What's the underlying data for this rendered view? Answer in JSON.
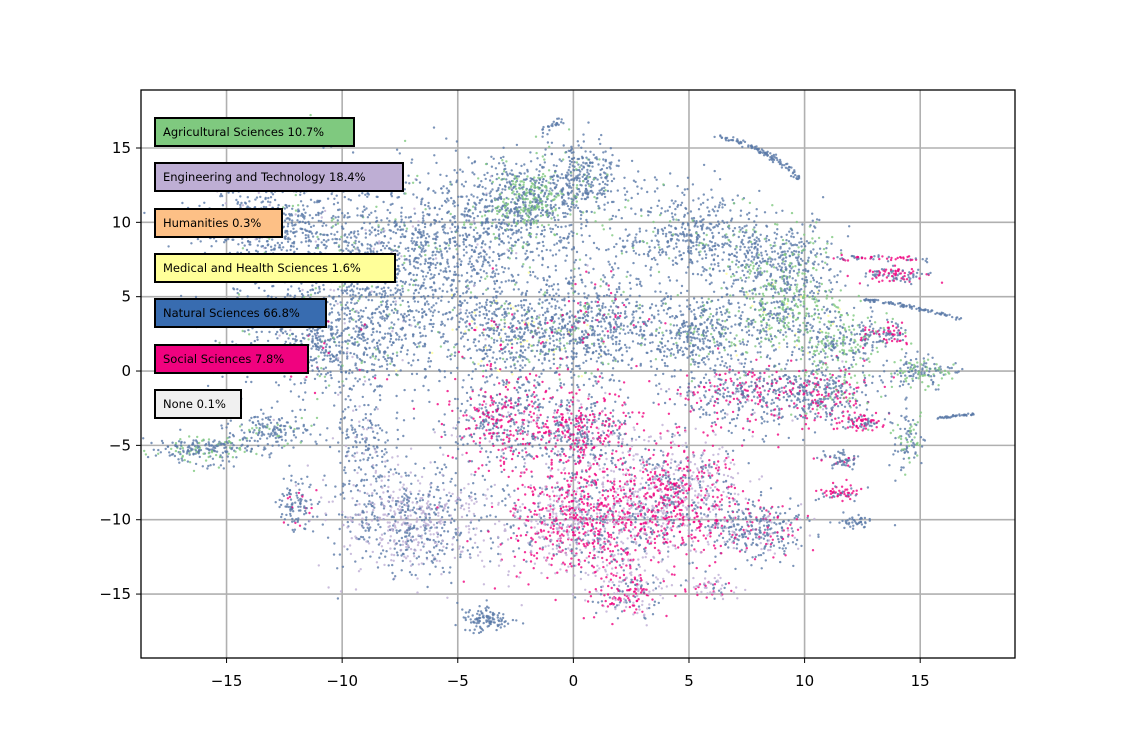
{
  "chart_data": {
    "type": "scatter",
    "title": "",
    "xlabel": "",
    "ylabel": "",
    "xlim": [
      -18.7,
      19.1
    ],
    "ylim": [
      -19.3,
      18.9
    ],
    "grid": true,
    "legend_placement": "upper-left",
    "x_ticks": [
      -15,
      -10,
      -5,
      0,
      5,
      10,
      15
    ],
    "y_ticks": [
      -15,
      -10,
      -5,
      0,
      5,
      10,
      15
    ],
    "x_tick_labels": [
      "−15",
      "−10",
      "−5",
      "0",
      "5",
      "10",
      "15"
    ],
    "y_tick_labels": [
      "−15",
      "−10",
      "−5",
      "0",
      "5",
      "10",
      "15"
    ],
    "series": [
      {
        "name": "Agricultural Sciences",
        "percent_label": "10.7%",
        "label": "Agricultural Sciences 10.7%",
        "color": "#7fc97f"
      },
      {
        "name": "Engineering and Technology",
        "percent_label": "18.4%",
        "label": "Engineering and Technology 18.4%",
        "color": "#beaed4"
      },
      {
        "name": "Humanities",
        "percent_label": "0.3%",
        "label": "Humanities 0.3%",
        "color": "#fdc086"
      },
      {
        "name": "Medical and Health Sciences",
        "percent_label": "1.6%",
        "label": "Medical and Health Sciences 1.6%",
        "color": "#ffff99"
      },
      {
        "name": "Natural Sciences",
        "percent_label": "66.8%",
        "label": "Natural Sciences 66.8%",
        "color": "#386cb0"
      },
      {
        "name": "Social Sciences",
        "percent_label": "7.8%",
        "label": "Social Sciences 7.8%",
        "color": "#f0027f"
      },
      {
        "name": "None",
        "percent_label": "0.1%",
        "label": "None 0.1%",
        "color": "#f0f0f0"
      }
    ],
    "point_color": "#5a79a8",
    "clusters": [
      {
        "cx": -8.5,
        "cy": 7.0,
        "rx": 6.5,
        "ry": 6.5,
        "n": 1500,
        "mix": {
          "4": 0.9,
          "0": 0.07,
          "1": 0.03
        }
      },
      {
        "cx": -13.5,
        "cy": 10.0,
        "rx": 3.5,
        "ry": 3.0,
        "n": 400,
        "mix": {
          "4": 0.93,
          "0": 0.05,
          "1": 0.02
        }
      },
      {
        "cx": -10.5,
        "cy": 1.5,
        "rx": 4.5,
        "ry": 3.5,
        "n": 600,
        "mix": {
          "4": 0.88,
          "5": 0.04,
          "0": 0.06,
          "1": 0.02
        }
      },
      {
        "cx": -16.0,
        "cy": -5.3,
        "rx": 2.5,
        "ry": 1.0,
        "n": 220,
        "mix": {
          "4": 0.75,
          "0": 0.25
        }
      },
      {
        "cx": -13.0,
        "cy": -4.0,
        "rx": 2.0,
        "ry": 1.4,
        "n": 160,
        "mix": {
          "4": 0.85,
          "0": 0.15
        }
      },
      {
        "cx": -12.0,
        "cy": -9.0,
        "rx": 0.9,
        "ry": 2.0,
        "n": 100,
        "mix": {
          "4": 0.9,
          "5": 0.1
        }
      },
      {
        "cx": -9.0,
        "cy": -5.0,
        "rx": 1.5,
        "ry": 3.0,
        "n": 170,
        "mix": {
          "4": 0.85,
          "1": 0.15
        }
      },
      {
        "cx": -7.0,
        "cy": -10.0,
        "rx": 4.0,
        "ry": 4.0,
        "n": 750,
        "mix": {
          "4": 0.55,
          "1": 0.45
        }
      },
      {
        "cx": -3.0,
        "cy": 10.0,
        "rx": 4.5,
        "ry": 5.0,
        "n": 700,
        "mix": {
          "4": 0.9,
          "0": 0.08,
          "1": 0.02
        }
      },
      {
        "cx": -1.8,
        "cy": 11.5,
        "rx": 1.7,
        "ry": 2.3,
        "n": 330,
        "mix": {
          "0": 0.55,
          "4": 0.45
        }
      },
      {
        "cx": 0.5,
        "cy": 13.0,
        "rx": 1.8,
        "ry": 2.5,
        "n": 280,
        "mix": {
          "4": 0.9,
          "0": 0.1
        }
      },
      {
        "cx": -2.5,
        "cy": 2.5,
        "rx": 3.5,
        "ry": 3.5,
        "n": 550,
        "mix": {
          "4": 0.82,
          "3": 0.06,
          "5": 0.06,
          "0": 0.06
        }
      },
      {
        "cx": 1.0,
        "cy": 3.0,
        "rx": 3.0,
        "ry": 4.0,
        "n": 550,
        "mix": {
          "4": 0.84,
          "5": 0.08,
          "0": 0.08
        }
      },
      {
        "cx": 5.0,
        "cy": 9.0,
        "rx": 4.0,
        "ry": 3.5,
        "n": 500,
        "mix": {
          "4": 0.92,
          "0": 0.08
        }
      },
      {
        "cx": 9.0,
        "cy": 7.5,
        "rx": 2.5,
        "ry": 3.0,
        "n": 380,
        "mix": {
          "4": 0.75,
          "0": 0.25
        }
      },
      {
        "cx": 9.0,
        "cy": 4.0,
        "rx": 3.0,
        "ry": 2.8,
        "n": 400,
        "mix": {
          "0": 0.45,
          "4": 0.5,
          "3": 0.05
        }
      },
      {
        "cx": 5.5,
        "cy": 2.5,
        "rx": 3.0,
        "ry": 3.0,
        "n": 400,
        "mix": {
          "4": 0.9,
          "0": 0.1
        }
      },
      {
        "cx": 7.5,
        "cy": -1.5,
        "rx": 4.0,
        "ry": 2.5,
        "n": 450,
        "mix": {
          "4": 0.7,
          "5": 0.25,
          "1": 0.05
        }
      },
      {
        "cx": 11.0,
        "cy": -1.5,
        "rx": 2.5,
        "ry": 2.2,
        "n": 300,
        "mix": {
          "4": 0.6,
          "5": 0.3,
          "0": 0.1
        }
      },
      {
        "cx": 11.5,
        "cy": 2.0,
        "rx": 2.5,
        "ry": 2.0,
        "n": 250,
        "mix": {
          "4": 0.55,
          "0": 0.45
        }
      },
      {
        "cx": 15.0,
        "cy": 0.0,
        "rx": 1.5,
        "ry": 1.2,
        "n": 140,
        "mix": {
          "4": 0.5,
          "0": 0.5
        }
      },
      {
        "cx": 14.0,
        "cy": 6.5,
        "rx": 1.7,
        "ry": 0.7,
        "n": 100,
        "mix": {
          "5": 0.55,
          "4": 0.45
        }
      },
      {
        "cx": 13.5,
        "cy": 2.5,
        "rx": 1.2,
        "ry": 0.8,
        "n": 90,
        "mix": {
          "4": 0.6,
          "5": 0.4
        }
      },
      {
        "cx": 14.5,
        "cy": -4.5,
        "rx": 0.8,
        "ry": 2.2,
        "n": 90,
        "mix": {
          "4": 0.6,
          "0": 0.4
        }
      },
      {
        "cx": 12.5,
        "cy": -3.5,
        "rx": 1.2,
        "ry": 0.6,
        "n": 80,
        "mix": {
          "5": 0.6,
          "4": 0.4
        }
      },
      {
        "cx": 11.5,
        "cy": -6.0,
        "rx": 1.0,
        "ry": 0.6,
        "n": 60,
        "mix": {
          "4": 0.9,
          "5": 0.1
        }
      },
      {
        "cx": 11.5,
        "cy": -8.2,
        "rx": 1.0,
        "ry": 0.6,
        "n": 60,
        "mix": {
          "5": 0.6,
          "4": 0.4
        }
      },
      {
        "cx": -3.0,
        "cy": -3.5,
        "rx": 3.0,
        "ry": 3.5,
        "n": 500,
        "mix": {
          "4": 0.55,
          "5": 0.4,
          "1": 0.05
        }
      },
      {
        "cx": 0.5,
        "cy": -4.0,
        "rx": 2.5,
        "ry": 3.0,
        "n": 420,
        "mix": {
          "5": 0.4,
          "4": 0.5,
          "1": 0.1
        }
      },
      {
        "cx": 0.5,
        "cy": -10.0,
        "rx": 4.0,
        "ry": 4.5,
        "n": 1100,
        "mix": {
          "5": 0.45,
          "1": 0.35,
          "4": 0.2
        }
      },
      {
        "cx": 4.5,
        "cy": -8.5,
        "rx": 3.5,
        "ry": 4.5,
        "n": 900,
        "mix": {
          "5": 0.4,
          "1": 0.35,
          "4": 0.25
        }
      },
      {
        "cx": 2.5,
        "cy": -15.0,
        "rx": 1.8,
        "ry": 1.8,
        "n": 180,
        "mix": {
          "5": 0.45,
          "1": 0.35,
          "4": 0.2
        }
      },
      {
        "cx": 8.0,
        "cy": -10.5,
        "rx": 2.5,
        "ry": 2.2,
        "n": 300,
        "mix": {
          "4": 0.7,
          "5": 0.15,
          "1": 0.15
        }
      },
      {
        "cx": 6.0,
        "cy": -14.5,
        "rx": 1.2,
        "ry": 0.8,
        "n": 60,
        "mix": {
          "1": 0.5,
          "4": 0.3,
          "5": 0.2
        }
      },
      {
        "cx": -3.8,
        "cy": -16.7,
        "rx": 1.3,
        "ry": 0.9,
        "n": 110,
        "mix": {
          "4": 1.0
        }
      },
      {
        "cx": 12.2,
        "cy": -10.2,
        "rx": 0.9,
        "ry": 0.6,
        "n": 40,
        "mix": {
          "4": 1.0
        }
      }
    ],
    "arcs": [
      {
        "x0": 6.2,
        "y0": 15.8,
        "xm": 8.5,
        "ym": 15.0,
        "x1": 9.7,
        "y1": 13.0,
        "n": 110,
        "spread": 0.25,
        "mix": {
          "4": 1.0
        }
      },
      {
        "x0": -0.5,
        "y0": 17.0,
        "xm": -1.0,
        "ym": 16.5,
        "x1": -1.4,
        "y1": 16.0,
        "n": 25,
        "spread": 0.3,
        "mix": {
          "4": 1.0
        }
      },
      {
        "x0": 12.5,
        "y0": 4.8,
        "xm": 14.5,
        "ym": 4.5,
        "x1": 16.7,
        "y1": 3.5,
        "n": 90,
        "spread": 0.15,
        "mix": {
          "4": 1.0
        }
      },
      {
        "x0": 15.8,
        "y0": -3.2,
        "xm": 16.5,
        "ym": -3.0,
        "x1": 17.4,
        "y1": -2.9,
        "n": 40,
        "spread": 0.12,
        "mix": {
          "4": 1.0
        }
      },
      {
        "x0": 11.0,
        "y0": 7.5,
        "xm": 13.0,
        "ym": 7.8,
        "x1": 15.5,
        "y1": 7.4,
        "n": 60,
        "spread": 0.2,
        "mix": {
          "5": 0.5,
          "4": 0.5
        }
      }
    ]
  }
}
